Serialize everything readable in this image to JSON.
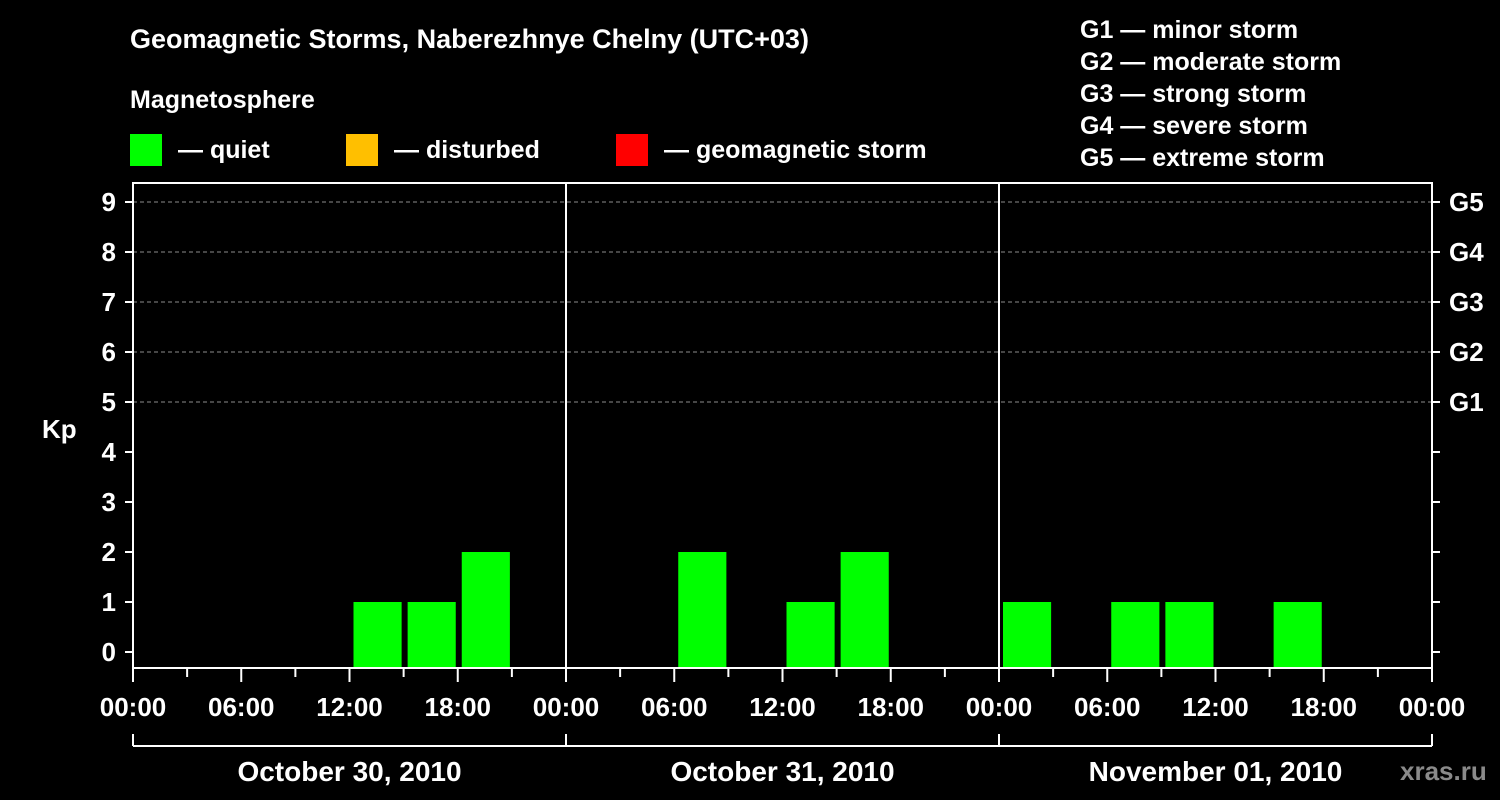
{
  "title": "Geomagnetic Storms, Naberezhnye Chelny (UTC+03)",
  "magnetosphere_label": "Magnetosphere",
  "legend": [
    {
      "label": "— quiet",
      "color": "#00ff00"
    },
    {
      "label": "— disturbed",
      "color": "#ffbf00"
    },
    {
      "label": "— geomagnetic storm",
      "color": "#ff0000"
    }
  ],
  "g_legend": [
    "G1 — minor storm",
    "G2 — moderate storm",
    "G3 — strong storm",
    "G4 — severe storm",
    "G5 — extreme storm"
  ],
  "watermark": "xras.ru",
  "chart_data": {
    "type": "bar",
    "title": "Geomagnetic Storms, Naberezhnye Chelny (UTC+03)",
    "ylabel": "Kp",
    "ylim": [
      0,
      9
    ],
    "yticks": [
      "0",
      "1",
      "2",
      "3",
      "4",
      "5",
      "6",
      "7",
      "8",
      "9"
    ],
    "right_axis": [
      {
        "kp": 5,
        "label": "G1"
      },
      {
        "kp": 6,
        "label": "G2"
      },
      {
        "kp": 7,
        "label": "G3"
      },
      {
        "kp": 8,
        "label": "G4"
      },
      {
        "kp": 9,
        "label": "G5"
      }
    ],
    "bar_interval_hours": 3,
    "total_hours": 72,
    "xtick_labels": [
      "00:00",
      "06:00",
      "12:00",
      "18:00",
      "00:00",
      "06:00",
      "12:00",
      "18:00",
      "00:00",
      "06:00",
      "12:00",
      "18:00",
      "00:00"
    ],
    "days": [
      "October 30, 2010",
      "October 31, 2010",
      "November 01, 2010"
    ],
    "bars": [
      {
        "start_hour": 12,
        "kp": 1,
        "status": "quiet"
      },
      {
        "start_hour": 15,
        "kp": 1,
        "status": "quiet"
      },
      {
        "start_hour": 18,
        "kp": 2,
        "status": "quiet"
      },
      {
        "start_hour": 30,
        "kp": 2,
        "status": "quiet"
      },
      {
        "start_hour": 36,
        "kp": 1,
        "status": "quiet"
      },
      {
        "start_hour": 39,
        "kp": 2,
        "status": "quiet"
      },
      {
        "start_hour": 48,
        "kp": 1,
        "status": "quiet"
      },
      {
        "start_hour": 54,
        "kp": 1,
        "status": "quiet"
      },
      {
        "start_hour": 57,
        "kp": 1,
        "status": "quiet"
      },
      {
        "start_hour": 63,
        "kp": 1,
        "status": "quiet"
      }
    ],
    "colors": {
      "quiet": "#00ff00",
      "disturbed": "#ffbf00",
      "storm": "#ff0000"
    }
  }
}
